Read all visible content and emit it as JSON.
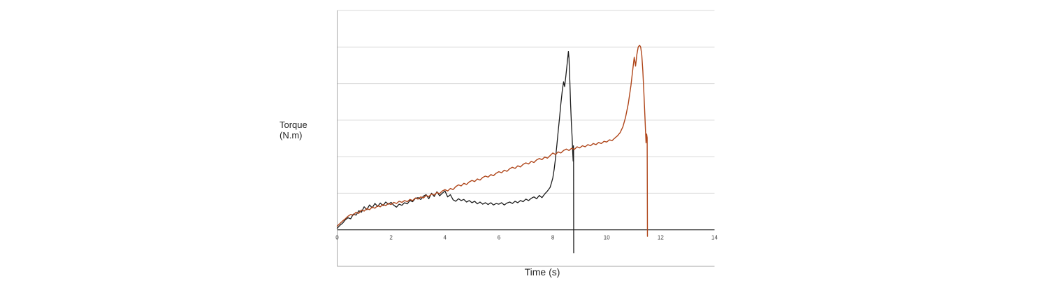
{
  "chart_data": {
    "type": "line",
    "title": "",
    "xlabel": "Time (s)",
    "ylabel": "Torque\n(N.m)",
    "xlim": [
      0,
      14
    ],
    "ylim": [
      -1,
      6
    ],
    "x_ticks": [
      "0",
      "2",
      "4",
      "6",
      "8",
      "10",
      "12",
      "14"
    ],
    "y_tick_labels_visible": false,
    "grid": "horizontal-only",
    "legend": "none",
    "colors": {
      "grid": "#d9d9d9",
      "zero_axis": "#4d4d4d",
      "border": "#a6a6a6",
      "tick_text": "#3f3f3f",
      "series_black": "#1c1c1c",
      "series_red": "#af4519"
    },
    "series": [
      {
        "name": "series-1-black",
        "color": "#1c1c1c",
        "stroke_width": 1.3,
        "points": [
          [
            0,
            0.04
          ],
          [
            0.1,
            0.12
          ],
          [
            0.2,
            0.18
          ],
          [
            0.3,
            0.27
          ],
          [
            0.4,
            0.33
          ],
          [
            0.5,
            0.3
          ],
          [
            0.6,
            0.43
          ],
          [
            0.7,
            0.4
          ],
          [
            0.8,
            0.52
          ],
          [
            0.9,
            0.48
          ],
          [
            1.0,
            0.63
          ],
          [
            1.1,
            0.55
          ],
          [
            1.2,
            0.68
          ],
          [
            1.3,
            0.6
          ],
          [
            1.4,
            0.72
          ],
          [
            1.5,
            0.64
          ],
          [
            1.6,
            0.73
          ],
          [
            1.7,
            0.66
          ],
          [
            1.8,
            0.76
          ],
          [
            1.9,
            0.7
          ],
          [
            2.0,
            0.75
          ],
          [
            2.1,
            0.67
          ],
          [
            2.2,
            0.62
          ],
          [
            2.3,
            0.7
          ],
          [
            2.4,
            0.67
          ],
          [
            2.5,
            0.74
          ],
          [
            2.6,
            0.71
          ],
          [
            2.7,
            0.8
          ],
          [
            2.8,
            0.77
          ],
          [
            2.9,
            0.86
          ],
          [
            3.0,
            0.88
          ],
          [
            3.1,
            0.83
          ],
          [
            3.2,
            0.92
          ],
          [
            3.3,
            0.96
          ],
          [
            3.4,
            0.85
          ],
          [
            3.5,
            1.0
          ],
          [
            3.6,
            0.91
          ],
          [
            3.7,
            1.04
          ],
          [
            3.8,
            0.93
          ],
          [
            3.9,
            1.0
          ],
          [
            4.0,
            1.06
          ],
          [
            4.1,
            0.9
          ],
          [
            4.2,
            0.96
          ],
          [
            4.3,
            0.82
          ],
          [
            4.4,
            0.78
          ],
          [
            4.5,
            0.85
          ],
          [
            4.6,
            0.8
          ],
          [
            4.7,
            0.83
          ],
          [
            4.8,
            0.76
          ],
          [
            4.9,
            0.8
          ],
          [
            5.0,
            0.74
          ],
          [
            5.1,
            0.78
          ],
          [
            5.2,
            0.71
          ],
          [
            5.3,
            0.76
          ],
          [
            5.4,
            0.7
          ],
          [
            5.5,
            0.74
          ],
          [
            5.6,
            0.69
          ],
          [
            5.7,
            0.74
          ],
          [
            5.8,
            0.68
          ],
          [
            5.9,
            0.72
          ],
          [
            6.0,
            0.7
          ],
          [
            6.1,
            0.74
          ],
          [
            6.2,
            0.68
          ],
          [
            6.3,
            0.73
          ],
          [
            6.4,
            0.76
          ],
          [
            6.5,
            0.72
          ],
          [
            6.6,
            0.78
          ],
          [
            6.7,
            0.74
          ],
          [
            6.8,
            0.8
          ],
          [
            6.9,
            0.77
          ],
          [
            7.0,
            0.84
          ],
          [
            7.1,
            0.8
          ],
          [
            7.2,
            0.86
          ],
          [
            7.3,
            0.9
          ],
          [
            7.4,
            0.85
          ],
          [
            7.5,
            0.94
          ],
          [
            7.6,
            0.88
          ],
          [
            7.7,
            0.98
          ],
          [
            7.8,
            1.06
          ],
          [
            7.9,
            1.16
          ],
          [
            7.95,
            1.28
          ],
          [
            8.0,
            1.42
          ],
          [
            8.05,
            1.65
          ],
          [
            8.1,
            1.95
          ],
          [
            8.15,
            2.32
          ],
          [
            8.2,
            2.7
          ],
          [
            8.25,
            3.06
          ],
          [
            8.3,
            3.45
          ],
          [
            8.35,
            3.8
          ],
          [
            8.4,
            4.05
          ],
          [
            8.44,
            3.92
          ],
          [
            8.48,
            4.18
          ],
          [
            8.52,
            4.45
          ],
          [
            8.56,
            4.75
          ],
          [
            8.58,
            4.88
          ],
          [
            8.6,
            4.7
          ],
          [
            8.63,
            4.1
          ],
          [
            8.66,
            3.45
          ],
          [
            8.69,
            2.9
          ],
          [
            8.72,
            2.5
          ],
          [
            8.74,
            2.1
          ],
          [
            8.755,
            1.88
          ],
          [
            8.765,
            2.3
          ],
          [
            8.77,
            2.18
          ],
          [
            8.775,
            -0.63
          ]
        ]
      },
      {
        "name": "series-2-red",
        "color": "#af4519",
        "stroke_width": 1.4,
        "points": [
          [
            0,
            0.1
          ],
          [
            0.1,
            0.17
          ],
          [
            0.2,
            0.24
          ],
          [
            0.3,
            0.3
          ],
          [
            0.4,
            0.37
          ],
          [
            0.5,
            0.42
          ],
          [
            0.6,
            0.4
          ],
          [
            0.7,
            0.48
          ],
          [
            0.8,
            0.45
          ],
          [
            0.9,
            0.54
          ],
          [
            1.0,
            0.51
          ],
          [
            1.1,
            0.58
          ],
          [
            1.2,
            0.55
          ],
          [
            1.3,
            0.62
          ],
          [
            1.4,
            0.59
          ],
          [
            1.5,
            0.66
          ],
          [
            1.6,
            0.63
          ],
          [
            1.7,
            0.69
          ],
          [
            1.8,
            0.66
          ],
          [
            1.9,
            0.72
          ],
          [
            2.0,
            0.69
          ],
          [
            2.1,
            0.75
          ],
          [
            2.2,
            0.72
          ],
          [
            2.3,
            0.78
          ],
          [
            2.4,
            0.75
          ],
          [
            2.5,
            0.8
          ],
          [
            2.6,
            0.77
          ],
          [
            2.7,
            0.83
          ],
          [
            2.8,
            0.8
          ],
          [
            2.9,
            0.87
          ],
          [
            3.0,
            0.84
          ],
          [
            3.1,
            0.9
          ],
          [
            3.2,
            0.87
          ],
          [
            3.3,
            0.94
          ],
          [
            3.4,
            0.91
          ],
          [
            3.5,
            0.98
          ],
          [
            3.6,
            0.95
          ],
          [
            3.7,
            1.02
          ],
          [
            3.8,
            0.99
          ],
          [
            3.9,
            1.06
          ],
          [
            4.0,
            1.1
          ],
          [
            4.1,
            1.06
          ],
          [
            4.2,
            1.13
          ],
          [
            4.3,
            1.1
          ],
          [
            4.4,
            1.18
          ],
          [
            4.5,
            1.23
          ],
          [
            4.6,
            1.2
          ],
          [
            4.7,
            1.27
          ],
          [
            4.8,
            1.24
          ],
          [
            4.9,
            1.31
          ],
          [
            5.0,
            1.35
          ],
          [
            5.1,
            1.32
          ],
          [
            5.2,
            1.39
          ],
          [
            5.3,
            1.36
          ],
          [
            5.4,
            1.43
          ],
          [
            5.5,
            1.47
          ],
          [
            5.6,
            1.44
          ],
          [
            5.7,
            1.51
          ],
          [
            5.8,
            1.48
          ],
          [
            5.9,
            1.55
          ],
          [
            6.0,
            1.59
          ],
          [
            6.1,
            1.56
          ],
          [
            6.2,
            1.63
          ],
          [
            6.3,
            1.6
          ],
          [
            6.4,
            1.67
          ],
          [
            6.5,
            1.71
          ],
          [
            6.6,
            1.68
          ],
          [
            6.7,
            1.75
          ],
          [
            6.8,
            1.72
          ],
          [
            6.9,
            1.79
          ],
          [
            7.0,
            1.83
          ],
          [
            7.1,
            1.8
          ],
          [
            7.2,
            1.87
          ],
          [
            7.3,
            1.84
          ],
          [
            7.4,
            1.91
          ],
          [
            7.5,
            1.95
          ],
          [
            7.6,
            1.92
          ],
          [
            7.7,
            1.99
          ],
          [
            7.8,
            1.96
          ],
          [
            7.9,
            2.03
          ],
          [
            8.0,
            2.1
          ],
          [
            8.1,
            2.06
          ],
          [
            8.2,
            2.13
          ],
          [
            8.3,
            2.1
          ],
          [
            8.4,
            2.17
          ],
          [
            8.5,
            2.21
          ],
          [
            8.6,
            2.17
          ],
          [
            8.7,
            2.23
          ],
          [
            8.8,
            2.2
          ],
          [
            8.9,
            2.27
          ],
          [
            9.0,
            2.24
          ],
          [
            9.1,
            2.3
          ],
          [
            9.2,
            2.27
          ],
          [
            9.3,
            2.33
          ],
          [
            9.4,
            2.3
          ],
          [
            9.5,
            2.36
          ],
          [
            9.6,
            2.33
          ],
          [
            9.7,
            2.39
          ],
          [
            9.8,
            2.36
          ],
          [
            9.9,
            2.42
          ],
          [
            10.0,
            2.4
          ],
          [
            10.1,
            2.46
          ],
          [
            10.2,
            2.44
          ],
          [
            10.3,
            2.51
          ],
          [
            10.4,
            2.57
          ],
          [
            10.5,
            2.66
          ],
          [
            10.6,
            2.82
          ],
          [
            10.7,
            3.08
          ],
          [
            10.8,
            3.45
          ],
          [
            10.9,
            3.95
          ],
          [
            10.97,
            4.4
          ],
          [
            11.02,
            4.72
          ],
          [
            11.07,
            4.48
          ],
          [
            11.12,
            4.8
          ],
          [
            11.17,
            5.0
          ],
          [
            11.22,
            5.05
          ],
          [
            11.26,
            5.0
          ],
          [
            11.3,
            4.78
          ],
          [
            11.34,
            4.35
          ],
          [
            11.38,
            3.75
          ],
          [
            11.42,
            3.05
          ],
          [
            11.44,
            2.68
          ],
          [
            11.46,
            2.38
          ],
          [
            11.48,
            2.62
          ],
          [
            11.5,
            2.52
          ],
          [
            11.51,
            -0.18
          ]
        ]
      }
    ]
  }
}
